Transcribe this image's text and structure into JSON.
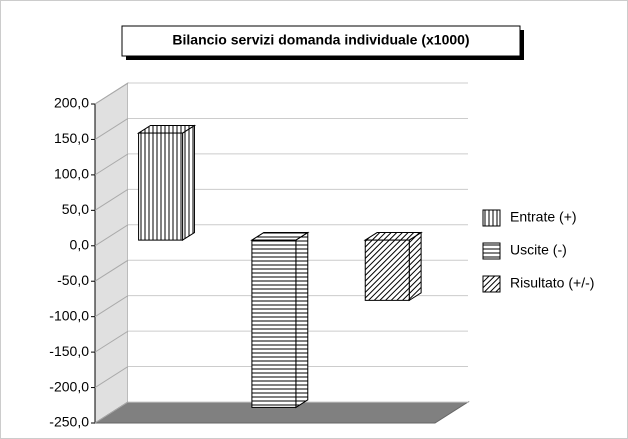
{
  "chart_data": {
    "type": "bar3d",
    "title": "Bilancio servizi domanda individuale (x1000)",
    "series": [
      {
        "name": "Entrate (+)",
        "color": "#000000",
        "pattern": "vertical",
        "values": [
          151
        ]
      },
      {
        "name": "Uscite (-)",
        "color": "#000000",
        "pattern": "horizontal",
        "values": [
          -236
        ]
      },
      {
        "name": "Risultato (+/-)",
        "color": "#000000",
        "pattern": "diagonal",
        "values": [
          -85
        ]
      }
    ],
    "ylim": [
      -250,
      200
    ],
    "yticks": [
      {
        "value": 200,
        "label": "200,0"
      },
      {
        "value": 150,
        "label": "150,0"
      },
      {
        "value": 100,
        "label": "100,0"
      },
      {
        "value": 50,
        "label": "50,0"
      },
      {
        "value": 0,
        "label": "0,0"
      },
      {
        "value": -50,
        "label": "-50,0"
      },
      {
        "value": -100,
        "label": "-100,0"
      },
      {
        "value": -150,
        "label": "-150,0"
      },
      {
        "value": -200,
        "label": "-200,0"
      },
      {
        "value": -250,
        "label": "-250,0"
      }
    ],
    "grid": true,
    "legend": "right"
  }
}
